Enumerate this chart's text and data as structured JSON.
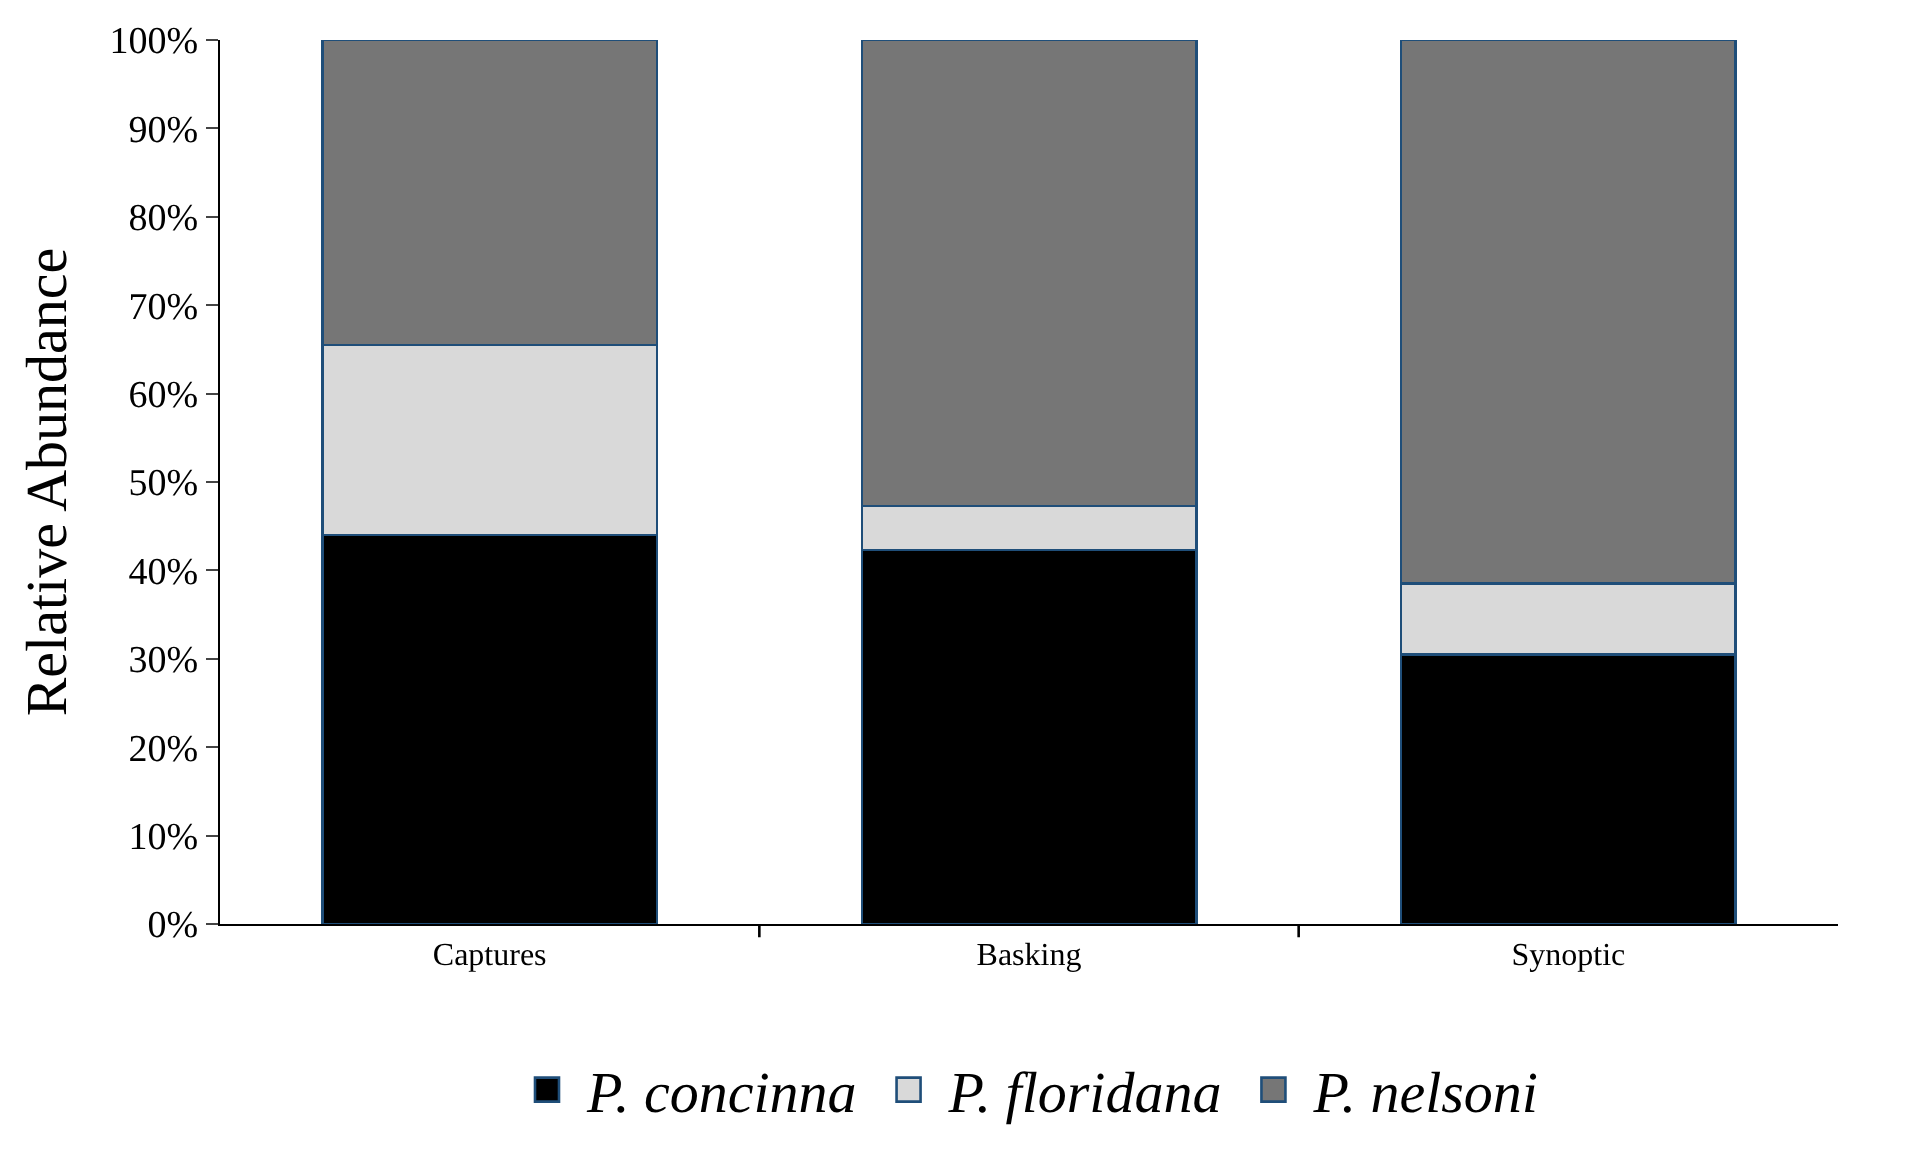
{
  "chart_data": {
    "type": "bar",
    "stacked": true,
    "ylabel": "Relative Abundance",
    "categories": [
      "Captures",
      "Basking",
      "Synoptic"
    ],
    "series": [
      {
        "name": "P. concinna",
        "color": "#000000",
        "values": [
          44,
          42.3,
          30.5
        ]
      },
      {
        "name": "P. floridana",
        "color": "#d9d9d9",
        "values": [
          21.5,
          5,
          8
        ]
      },
      {
        "name": "P. nelsoni",
        "color": "#767676",
        "values": [
          34.5,
          52.7,
          61.5
        ]
      }
    ],
    "ylim": [
      0,
      100
    ],
    "yticks": [
      {
        "value": 0,
        "label": "0%"
      },
      {
        "value": 10,
        "label": "10%"
      },
      {
        "value": 20,
        "label": "20%"
      },
      {
        "value": 30,
        "label": "30%"
      },
      {
        "value": 40,
        "label": "40%"
      },
      {
        "value": 50,
        "label": "50%"
      },
      {
        "value": 60,
        "label": "60%"
      },
      {
        "value": 70,
        "label": "70%"
      },
      {
        "value": 80,
        "label": "80%"
      },
      {
        "value": 90,
        "label": "90%"
      },
      {
        "value": 100,
        "label": "100%"
      }
    ],
    "legend": "bottom"
  }
}
